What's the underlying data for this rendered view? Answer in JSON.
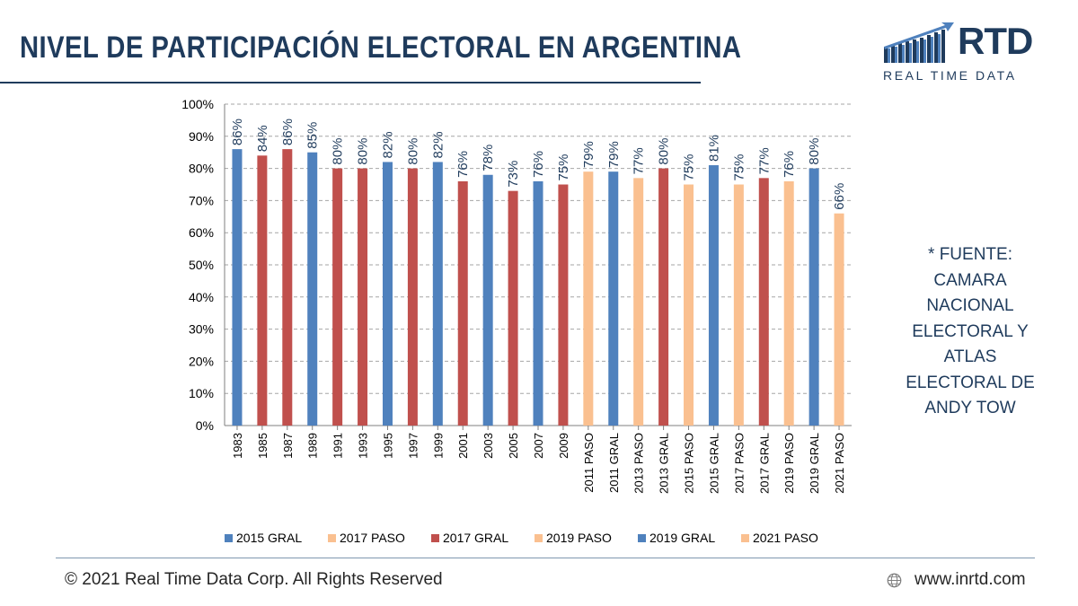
{
  "header": {
    "title": "NIVEL DE PARTICIPACIÓN ELECTORAL EN ARGENTINA"
  },
  "logo": {
    "text": "RTD",
    "tagline": "REAL TIME DATA",
    "icon": "bar-chart-arrow-icon"
  },
  "source_note": {
    "lines": [
      "* FUENTE:",
      "CAMARA",
      "NACIONAL",
      "ELECTORAL Y",
      "ATLAS",
      "ELECTORAL DE",
      "ANDY TOW"
    ]
  },
  "footer": {
    "copyright": "© 2021 Real Time Data Corp. All Rights Reserved",
    "website": "www.inrtd.com",
    "website_icon": "globe-icon"
  },
  "colors": {
    "title": "#1f3b5c",
    "blue": "#4f81bd",
    "red": "#c0504d",
    "peach": "#fac090"
  },
  "chart_data": {
    "type": "bar",
    "title": "",
    "xlabel": "",
    "ylabel": "",
    "ylim": [
      0,
      100
    ],
    "y_ticks": [
      "0%",
      "10%",
      "20%",
      "30%",
      "40%",
      "50%",
      "60%",
      "70%",
      "80%",
      "90%",
      "100%"
    ],
    "grid": "horizontal dashed",
    "legend_position": "bottom",
    "categories": [
      "1983",
      "1985",
      "1987",
      "1989",
      "1991",
      "1993",
      "1995",
      "1997",
      "1999",
      "2001",
      "2003",
      "2005",
      "2007",
      "2009",
      "2011 PASO",
      "2011 GRAL",
      "2013 PASO",
      "2013 GRAL",
      "2015 PASO",
      "2015 GRAL",
      "2017 PASO",
      "2017 GRAL",
      "2019 PASO",
      "2019 GRAL",
      "2021 PASO"
    ],
    "values": [
      86,
      84,
      86,
      85,
      80,
      80,
      82,
      80,
      82,
      76,
      78,
      73,
      76,
      75,
      79,
      79,
      77,
      80,
      75,
      81,
      75,
      77,
      76,
      80,
      66
    ],
    "labels": [
      "86%",
      "84%",
      "86%",
      "85%",
      "80%",
      "80%",
      "82%",
      "80%",
      "82%",
      "76%",
      "78%",
      "73%",
      "76%",
      "75%",
      "79%",
      "79%",
      "77%",
      "80%",
      "75%",
      "81%",
      "75%",
      "77%",
      "76%",
      "80%",
      "66%"
    ],
    "bar_colors": [
      "blue",
      "red",
      "red",
      "blue",
      "red",
      "red",
      "blue",
      "red",
      "blue",
      "red",
      "blue",
      "red",
      "blue",
      "red",
      "peach",
      "blue",
      "peach",
      "red",
      "peach",
      "blue",
      "peach",
      "red",
      "peach",
      "blue",
      "peach"
    ],
    "legend": [
      {
        "name": "2015 GRAL",
        "color": "blue"
      },
      {
        "name": "2017 PASO",
        "color": "peach"
      },
      {
        "name": "2017 GRAL",
        "color": "red"
      },
      {
        "name": "2019 PASO",
        "color": "peach"
      },
      {
        "name": "2019 GRAL",
        "color": "blue"
      },
      {
        "name": "2021 PASO",
        "color": "peach"
      }
    ]
  }
}
